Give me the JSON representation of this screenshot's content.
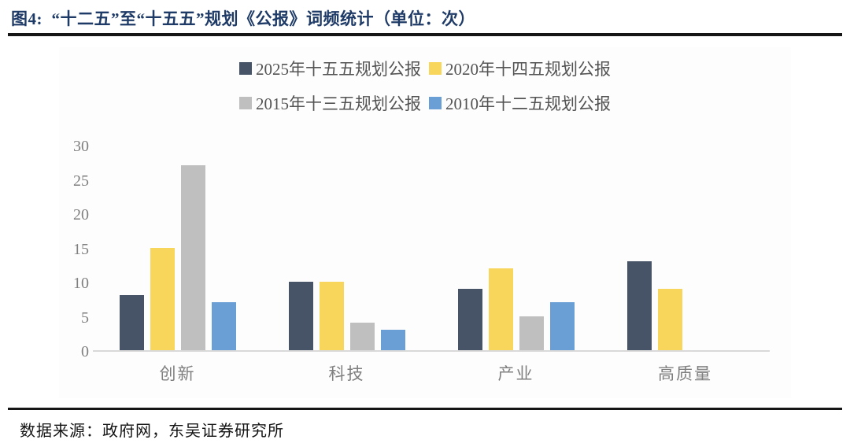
{
  "header": {
    "title": "图4:  “十二五”至“十五五”规划《公报》词频统计（单位：次）"
  },
  "chart_data": {
    "type": "bar",
    "title": "“十二五”至“十五五”规划《公报》词频统计",
    "unit": "次",
    "categories": [
      "创新",
      "科技",
      "产业",
      "高质量"
    ],
    "series": [
      {
        "name": "2025年十五五规划公报",
        "color": "#475468",
        "values": [
          8,
          10,
          9,
          13
        ]
      },
      {
        "name": "2020年十四五规划公报",
        "color": "#F8D65C",
        "values": [
          15,
          10,
          12,
          9
        ]
      },
      {
        "name": "2015年十三五规划公报",
        "color": "#BFBFBF",
        "values": [
          27,
          4,
          5,
          0
        ]
      },
      {
        "name": "2010年十二五规划公报",
        "color": "#6A9FD6",
        "values": [
          7,
          3,
          7,
          0
        ]
      }
    ],
    "ylim": [
      0,
      30
    ],
    "yticks": [
      0,
      5,
      10,
      15,
      20,
      25,
      30
    ],
    "grid": false,
    "legend_position": "top",
    "legend_rows": 2
  },
  "colors": {
    "title_text": "#1E3A66",
    "axis_line": "#D9D9D9",
    "tick_text": "#7F7F7F",
    "legend_text": "#545454",
    "separator": "#161616"
  },
  "footer": {
    "source": "数据来源：政府网，东吴证券研究所"
  }
}
